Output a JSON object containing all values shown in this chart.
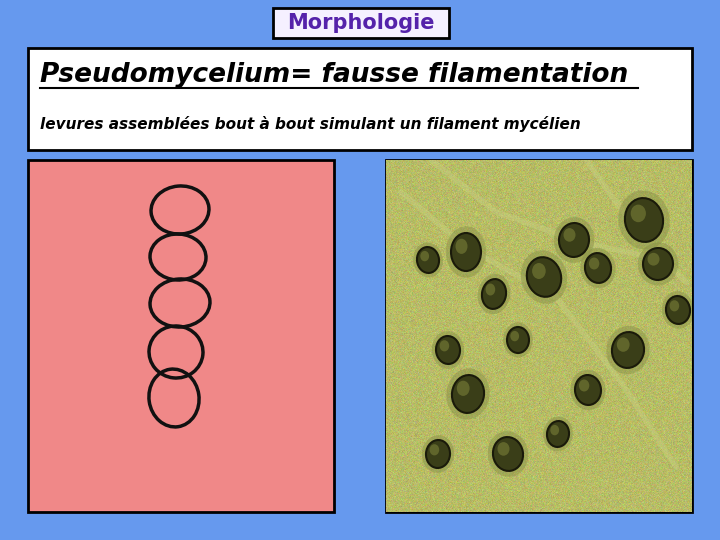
{
  "bg_color": "#6699ee",
  "title_box_bg": "#f5f0ff",
  "title_box_border": "#000000",
  "title_text": "Morphologie",
  "title_color": "#5522aa",
  "title_fontsize": 15,
  "header_box_bg": "#ffffff",
  "header_box_border": "#000000",
  "main_title": "Pseudomycelium= fausse filamentation",
  "main_title_color": "#000000",
  "main_title_fontsize": 19,
  "subtitle": "levures assemblées bout à bout simulant un filament mycélien",
  "subtitle_color": "#000000",
  "subtitle_fontsize": 11,
  "left_image_bg": "#f08888",
  "left_image_border": "#000000",
  "right_image_border": "#000000",
  "ellipse_color": "#111111",
  "ellipse_linewidth": 2.5,
  "ellipses": [
    [
      180,
      330,
      58,
      48,
      5
    ],
    [
      178,
      283,
      56,
      46,
      -3
    ],
    [
      180,
      237,
      60,
      48,
      4
    ],
    [
      176,
      188,
      54,
      52,
      -6
    ],
    [
      174,
      142,
      50,
      58,
      8
    ]
  ],
  "yeast_cells": [
    [
      80,
      260,
      30,
      38,
      0
    ],
    [
      108,
      218,
      24,
      30,
      -10
    ],
    [
      158,
      235,
      34,
      40,
      15
    ],
    [
      188,
      272,
      30,
      34,
      -5
    ],
    [
      212,
      244,
      26,
      30,
      10
    ],
    [
      132,
      172,
      22,
      26,
      0
    ],
    [
      82,
      118,
      32,
      38,
      -8
    ],
    [
      62,
      162,
      24,
      28,
      5
    ],
    [
      258,
      292,
      38,
      44,
      10
    ],
    [
      272,
      248,
      30,
      32,
      -5
    ],
    [
      292,
      202,
      24,
      28,
      8
    ],
    [
      242,
      162,
      32,
      36,
      -10
    ],
    [
      202,
      122,
      26,
      30,
      5
    ],
    [
      172,
      78,
      22,
      26,
      -8
    ],
    [
      122,
      58,
      30,
      34,
      10
    ],
    [
      52,
      58,
      24,
      28,
      -5
    ],
    [
      42,
      252,
      22,
      26,
      8
    ]
  ]
}
